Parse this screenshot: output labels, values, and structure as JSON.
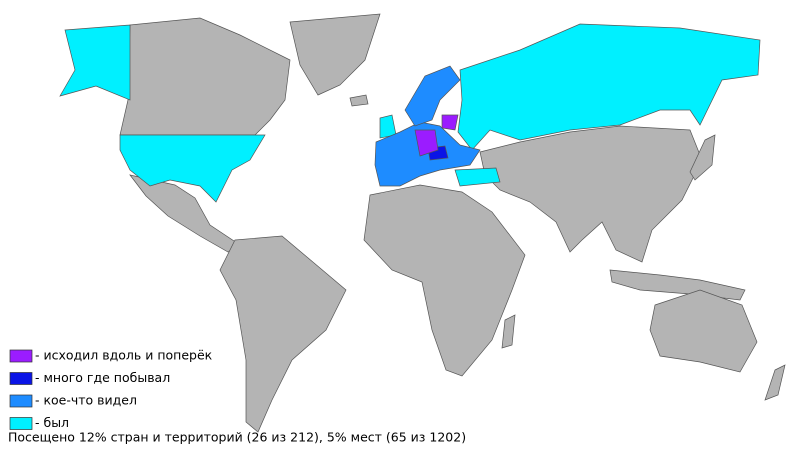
{
  "legend": [
    {
      "label": "- исходил вдоль и поперёк",
      "color": "#9b1cff"
    },
    {
      "label": "- много где побывал",
      "color": "#0a14e6"
    },
    {
      "label": "- кое-что видел",
      "color": "#1e8cff"
    },
    {
      "label": "- был",
      "color": "#00f0ff"
    }
  ],
  "footer": "Посещено 12% стран и территорий (26 из 212), 5% мест (65 из 1202)",
  "land_color": "#b4b4b4"
}
